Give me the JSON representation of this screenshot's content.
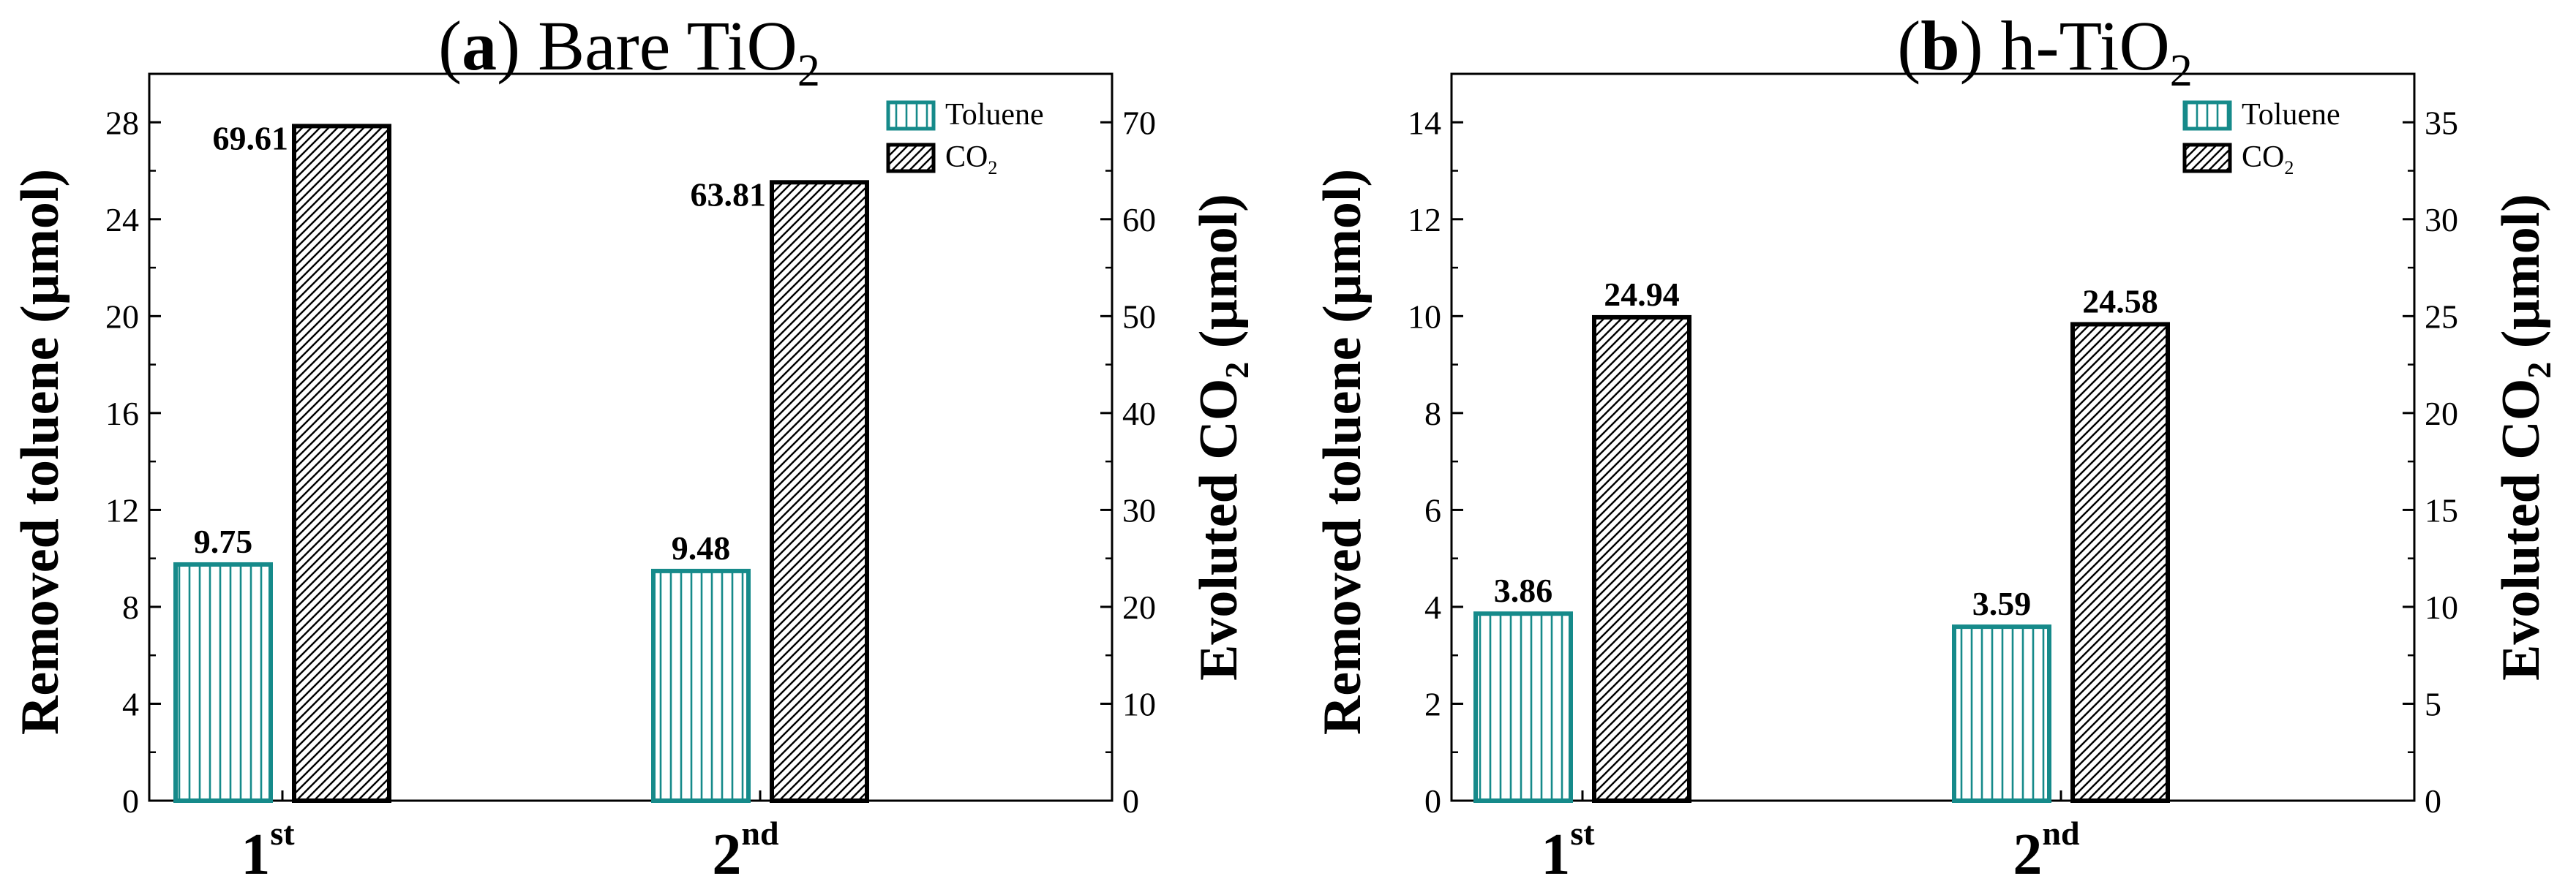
{
  "chart_data": [
    {
      "type": "bar",
      "title": {
        "prefix": "(",
        "letter": "a",
        "suffix": ") Bare TiO",
        "sub": "2"
      },
      "categories": [
        {
          "main": "1",
          "sup": "st"
        },
        {
          "main": "2",
          "sup": "nd"
        }
      ],
      "series": [
        {
          "name": "Toluene",
          "axis": "left",
          "values": [
            9.75,
            9.48
          ],
          "value_labels": [
            "9.75",
            "9.48"
          ],
          "color": "#168a8a",
          "pattern": "vertical"
        },
        {
          "name": "CO2",
          "axis": "right",
          "values": [
            69.61,
            63.81
          ],
          "value_labels": [
            "69.61",
            "63.81"
          ],
          "color": "#000000",
          "pattern": "diagonal"
        }
      ],
      "ylabel": "Removed toluene (µmol)",
      "y2label": {
        "main": "Evoluted CO",
        "sub": "2",
        "tail": " (µmol)"
      },
      "ylim": [
        0,
        30
      ],
      "yticks": [
        0,
        4,
        8,
        12,
        16,
        20,
        24,
        28
      ],
      "y2lim": [
        0,
        75
      ],
      "y2ticks": [
        0,
        10,
        20,
        30,
        40,
        50,
        60,
        70
      ],
      "legend": {
        "position": "top-right",
        "entries": [
          {
            "main": "Toluene",
            "sub": ""
          },
          {
            "main": "CO",
            "sub": "2"
          }
        ]
      }
    },
    {
      "type": "bar",
      "title": {
        "prefix": "(",
        "letter": "b",
        "suffix": ") h-TiO",
        "sub": "2"
      },
      "categories": [
        {
          "main": "1",
          "sup": "st"
        },
        {
          "main": "2",
          "sup": "nd"
        }
      ],
      "series": [
        {
          "name": "Toluene",
          "axis": "left",
          "values": [
            3.86,
            3.59
          ],
          "value_labels": [
            "3.86",
            "3.59"
          ],
          "color": "#168a8a",
          "pattern": "vertical"
        },
        {
          "name": "CO2",
          "axis": "right",
          "values": [
            24.94,
            24.58
          ],
          "value_labels": [
            "24.94",
            "24.58"
          ],
          "color": "#000000",
          "pattern": "diagonal"
        }
      ],
      "ylabel": "Removed toluene (µmol)",
      "y2label": {
        "main": "Evoluted CO",
        "sub": "2",
        "tail": " (µmol)"
      },
      "ylim": [
        0,
        15
      ],
      "yticks": [
        0,
        2,
        4,
        6,
        8,
        10,
        12,
        14
      ],
      "y2lim": [
        0,
        37.5
      ],
      "y2ticks": [
        0,
        5,
        10,
        15,
        20,
        25,
        30,
        35
      ],
      "legend": {
        "position": "top-right",
        "entries": [
          {
            "main": "Toluene",
            "sub": ""
          },
          {
            "main": "CO",
            "sub": "2"
          }
        ]
      }
    }
  ]
}
